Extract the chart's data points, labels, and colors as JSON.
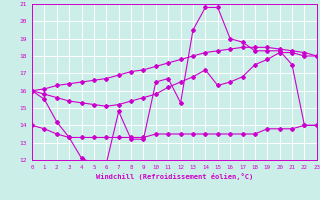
{
  "background_color": "#cceee8",
  "grid_color": "#aadddd",
  "line_color": "#cc00cc",
  "x_hours": [
    0,
    1,
    2,
    3,
    4,
    5,
    6,
    7,
    8,
    9,
    10,
    11,
    12,
    13,
    14,
    15,
    16,
    17,
    18,
    19,
    20,
    21,
    22,
    23
  ],
  "series1": [
    16.0,
    15.5,
    14.2,
    13.3,
    12.1,
    11.8,
    11.8,
    14.8,
    13.2,
    13.2,
    16.5,
    16.7,
    15.3,
    19.5,
    20.8,
    20.8,
    19.0,
    18.8,
    18.3,
    18.3,
    18.3,
    17.5,
    14.0,
    14.0
  ],
  "series2": [
    16.0,
    15.8,
    15.6,
    15.4,
    15.3,
    15.2,
    15.1,
    15.2,
    15.4,
    15.6,
    15.8,
    16.2,
    16.5,
    16.8,
    17.2,
    16.3,
    16.5,
    16.8,
    17.5,
    17.8,
    18.2,
    18.2,
    18.0,
    18.0
  ],
  "series3": [
    14.0,
    13.8,
    13.5,
    13.3,
    13.3,
    13.3,
    13.3,
    13.3,
    13.3,
    13.3,
    13.5,
    13.5,
    13.5,
    13.5,
    13.5,
    13.5,
    13.5,
    13.5,
    13.5,
    13.8,
    13.8,
    13.8,
    14.0,
    14.0
  ],
  "series4": [
    16.0,
    16.1,
    16.3,
    16.4,
    16.5,
    16.6,
    16.7,
    16.9,
    17.1,
    17.2,
    17.4,
    17.6,
    17.8,
    18.0,
    18.2,
    18.3,
    18.4,
    18.5,
    18.5,
    18.5,
    18.4,
    18.3,
    18.2,
    18.0
  ],
  "xlabel": "Windchill (Refroidissement éolien,°C)",
  "ylim": [
    12,
    21
  ],
  "xlim": [
    0,
    23
  ],
  "yticks": [
    12,
    13,
    14,
    15,
    16,
    17,
    18,
    19,
    20,
    21
  ]
}
